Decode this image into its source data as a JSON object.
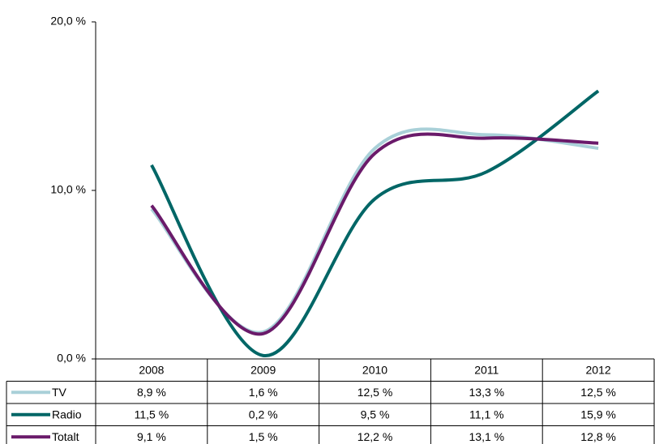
{
  "chart_data": {
    "type": "line",
    "categories": [
      "2008",
      "2009",
      "2010",
      "2011",
      "2012"
    ],
    "series": [
      {
        "name": "TV",
        "color": "#a9d0d8",
        "values": [
          8.9,
          1.6,
          12.5,
          13.3,
          12.5
        ],
        "value_labels": [
          "8,9 %",
          "1,6 %",
          "12,5 %",
          "13,3 %",
          "12,5 %"
        ]
      },
      {
        "name": "Radio",
        "color": "#006666",
        "values": [
          11.5,
          0.2,
          9.5,
          11.1,
          15.9
        ],
        "value_labels": [
          "11,5 %",
          "0,2 %",
          "9,5 %",
          "11,1 %",
          "15,9 %"
        ]
      },
      {
        "name": "Totalt",
        "color": "#6a1a6a",
        "values": [
          9.1,
          1.5,
          12.2,
          13.1,
          12.8
        ],
        "value_labels": [
          "9,1 %",
          "1,5 %",
          "12,2 %",
          "13,1 %",
          "12,8 %"
        ]
      }
    ],
    "ylim": [
      0,
      20
    ],
    "yticks": [
      {
        "value": 0,
        "label": "0,0 %"
      },
      {
        "value": 10,
        "label": "10,0 %"
      },
      {
        "value": 20,
        "label": "20,0 %"
      }
    ]
  }
}
